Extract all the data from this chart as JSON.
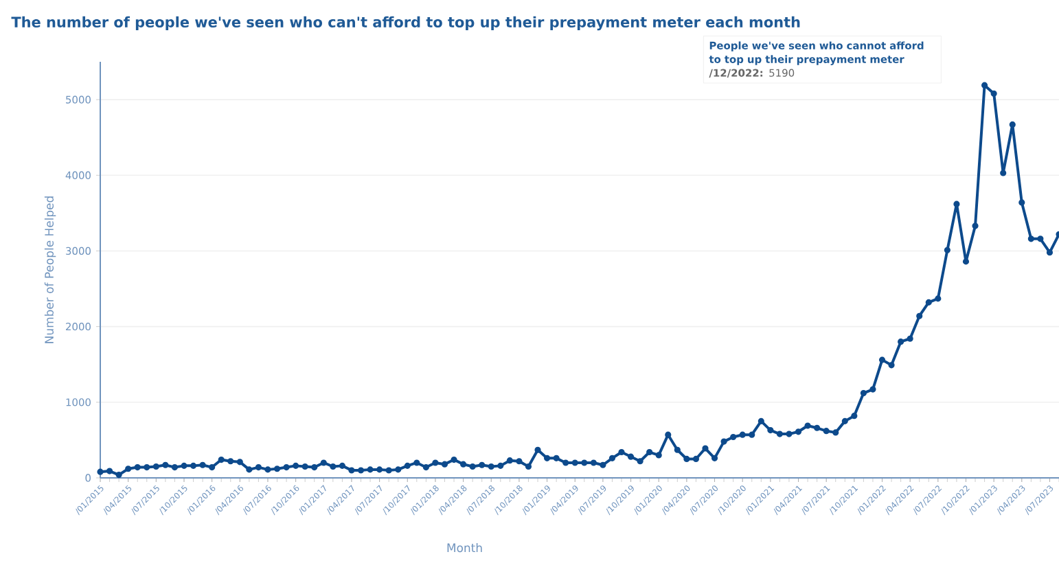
{
  "chart_data": {
    "type": "line",
    "title": "The number of people we've seen who can't afford to top up their prepayment meter each month",
    "xlabel": "Month",
    "ylabel": "Number of People Helped",
    "categories": [
      "/01/2015",
      null,
      null,
      "/04/2015",
      null,
      null,
      "/07/2015",
      null,
      null,
      "/10/2015",
      null,
      null,
      "/01/2016",
      null,
      null,
      "/04/2016",
      null,
      null,
      "/07/2016",
      null,
      null,
      "/10/2016",
      null,
      null,
      "/01/2017",
      null,
      null,
      "/04/2017",
      null,
      null,
      "/07/2017",
      null,
      null,
      "/10/2017",
      null,
      null,
      "/01/2018",
      null,
      null,
      "/04/2018",
      null,
      null,
      "/07/2018",
      null,
      null,
      "/10/2018",
      null,
      null,
      "/01/2019",
      null,
      null,
      "/04/2019",
      null,
      null,
      "/07/2019",
      null,
      null,
      "/10/2019",
      null,
      null,
      "/01/2020",
      null,
      null,
      "/04/2020",
      null,
      null,
      "/07/2020",
      null,
      null,
      "/10/2020",
      null,
      null,
      "/01/2021",
      null,
      null,
      "/04/2021",
      null,
      null,
      "/07/2021",
      null,
      null,
      "/10/2021",
      null,
      null,
      "/01/2022",
      null,
      null,
      "/04/2022",
      null,
      null,
      "/07/2022",
      null,
      null,
      "/10/2022",
      null,
      null,
      "/01/2023",
      null,
      null,
      "/04/2023",
      null,
      null,
      "/07/2023",
      null
    ],
    "series": [
      {
        "color": "#0d4a8c",
        "values": [
          80,
          90,
          40,
          120,
          140,
          140,
          150,
          170,
          140,
          160,
          160,
          170,
          140,
          240,
          220,
          210,
          110,
          140,
          110,
          120,
          140,
          160,
          150,
          140,
          200,
          150,
          160,
          100,
          100,
          110,
          110,
          100,
          110,
          160,
          200,
          140,
          200,
          180,
          240,
          180,
          150,
          170,
          150,
          160,
          230,
          220,
          150,
          370,
          260,
          260,
          200,
          200,
          200,
          200,
          170,
          260,
          340,
          280,
          220,
          340,
          300,
          570,
          370,
          250,
          250,
          390,
          260,
          480,
          540,
          570,
          570,
          750,
          630,
          580,
          580,
          610,
          690,
          660,
          620,
          600,
          750,
          820,
          1120,
          1170,
          1560,
          1490,
          1800,
          1840,
          2140,
          2320,
          2370,
          3010,
          3620,
          2860,
          3330,
          5190,
          5080,
          4030,
          4670,
          3640,
          3160,
          3160,
          2980,
          3220
        ]
      }
    ],
    "ylim": [
      0,
      5500
    ],
    "yticks": [
      0,
      1000,
      2000,
      3000,
      4000,
      5000
    ],
    "grid": "y",
    "marker": "circle",
    "line_style": "solid",
    "annotations": [
      "People we've seen who cannot afford to top up their prepayment meter",
      "**/12/2022:** 5190"
    ]
  }
}
